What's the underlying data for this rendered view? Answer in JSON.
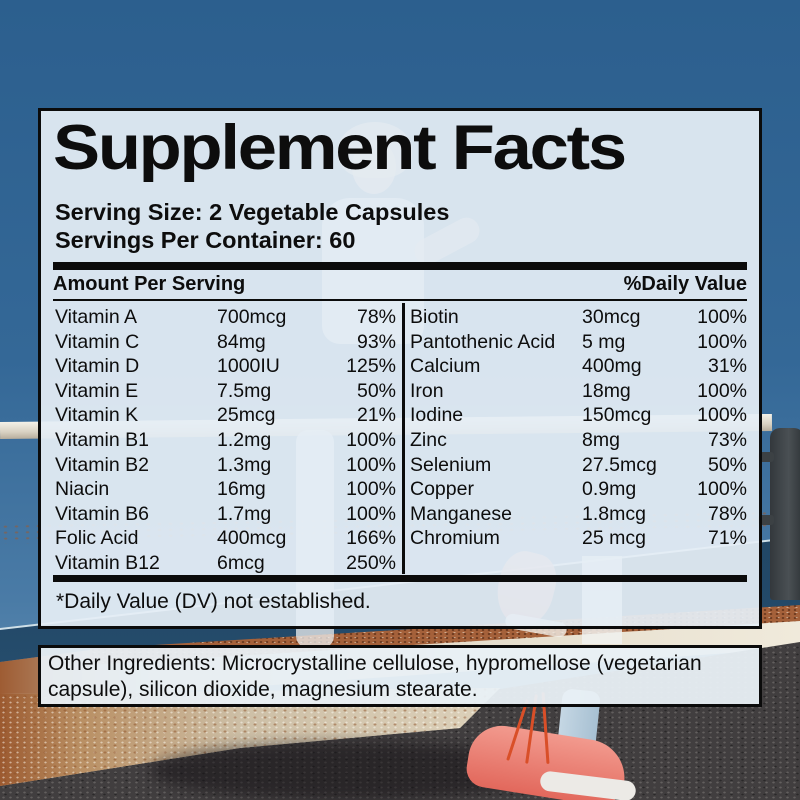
{
  "panel": {
    "title": "Supplement Facts",
    "serving_size": "Serving Size: 2 Vegetable Capsules",
    "servings_per_container": "Servings Per Container: 60",
    "amount_header": "Amount Per Serving",
    "dv_header": "%Daily Value",
    "rows_left": [
      {
        "name": "Vitamin A",
        "amount": "700mcg",
        "dv": "78%"
      },
      {
        "name": "Vitamin C",
        "amount": "84mg",
        "dv": "93%"
      },
      {
        "name": "Vitamin D",
        "amount": "1000IU",
        "dv": "125%"
      },
      {
        "name": "Vitamin E",
        "amount": "7.5mg",
        "dv": "50%"
      },
      {
        "name": "Vitamin K",
        "amount": "25mcg",
        "dv": "21%"
      },
      {
        "name": "Vitamin B1",
        "amount": "1.2mg",
        "dv": "100%"
      },
      {
        "name": "Vitamin B2",
        "amount": "1.3mg",
        "dv": "100%"
      },
      {
        "name": "Niacin",
        "amount": "16mg",
        "dv": "100%"
      },
      {
        "name": "Vitamin B6",
        "amount": "1.7mg",
        "dv": "100%"
      },
      {
        "name": "Folic Acid",
        "amount": "400mcg",
        "dv": "166%"
      },
      {
        "name": "Vitamin B12",
        "amount": "6mcg",
        "dv": "250%"
      }
    ],
    "rows_right": [
      {
        "name": "Biotin",
        "amount": "30mcg",
        "dv": "100%"
      },
      {
        "name": "Pantothenic Acid",
        "amount": "5 mg",
        "dv": "100%"
      },
      {
        "name": "Calcium",
        "amount": "400mg",
        "dv": "31%"
      },
      {
        "name": "Iron",
        "amount": "18mg",
        "dv": "100%"
      },
      {
        "name": "Iodine",
        "amount": "150mcg",
        "dv": "100%"
      },
      {
        "name": "Zinc",
        "amount": "8mg",
        "dv": "73%"
      },
      {
        "name": "Selenium",
        "amount": "27.5mcg",
        "dv": "50%"
      },
      {
        "name": "Copper",
        "amount": "0.9mg",
        "dv": "100%"
      },
      {
        "name": "Manganese",
        "amount": "1.8mcg",
        "dv": "78%"
      },
      {
        "name": "Chromium",
        "amount": "25 mcg",
        "dv": "71%"
      }
    ],
    "footnote": "*Daily Value (DV) not established.",
    "other_ingredients": "Other Ingredients: Microcrystalline cellulose, hypromellose (vegetarian capsule), silicon dioxide, magnesium stearate."
  },
  "colors": {
    "sky": "#2c5f8e",
    "sea": "#1d4260",
    "panel_bg": "rgba(229,238,245,0.93)",
    "text": "#0d0d0d",
    "shoe": "#e2685c",
    "rust": "#a5613a",
    "asphalt": "#413e3f"
  }
}
